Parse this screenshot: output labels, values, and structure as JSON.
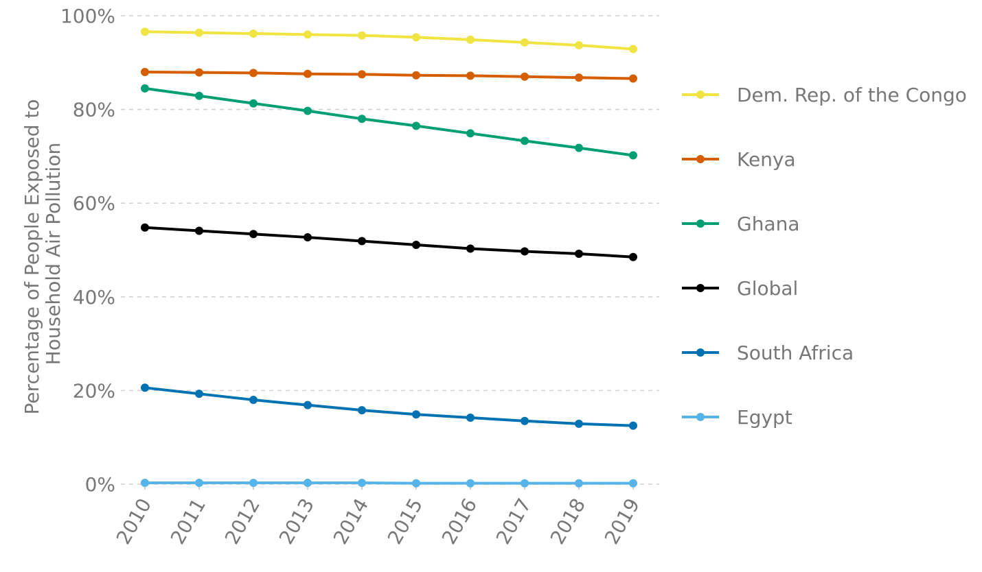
{
  "chart_data": {
    "type": "line",
    "title": "",
    "xlabel": "",
    "ylabel_lines": [
      "Percentage of People Exposed to",
      "Household Air Pollution"
    ],
    "x": [
      "2010",
      "2011",
      "2012",
      "2013",
      "2014",
      "2015",
      "2016",
      "2017",
      "2018",
      "2019"
    ],
    "ylim": [
      0,
      100
    ],
    "y_ticks": [
      0,
      20,
      40,
      60,
      80,
      100
    ],
    "y_tick_labels": [
      "0%",
      "20%",
      "40%",
      "60%",
      "80%",
      "100%"
    ],
    "grid": true,
    "legend_position": "right",
    "series": [
      {
        "name": "Dem. Rep. of the Congo",
        "color": "#f0e442",
        "values": [
          96.6,
          96.4,
          96.2,
          96.0,
          95.8,
          95.4,
          94.9,
          94.3,
          93.7,
          92.9
        ]
      },
      {
        "name": "Kenya",
        "color": "#d55e00",
        "values": [
          88.0,
          87.9,
          87.8,
          87.6,
          87.5,
          87.3,
          87.2,
          87.0,
          86.8,
          86.6
        ]
      },
      {
        "name": "Ghana",
        "color": "#009e73",
        "values": [
          84.5,
          82.9,
          81.3,
          79.7,
          78.0,
          76.5,
          74.9,
          73.3,
          71.8,
          70.2
        ]
      },
      {
        "name": "Global",
        "color": "#000000",
        "values": [
          54.8,
          54.1,
          53.4,
          52.7,
          51.9,
          51.1,
          50.3,
          49.7,
          49.2,
          48.5
        ]
      },
      {
        "name": "South Africa",
        "color": "#0072b2",
        "values": [
          20.6,
          19.3,
          18.0,
          16.9,
          15.8,
          14.9,
          14.2,
          13.5,
          12.9,
          12.5
        ]
      },
      {
        "name": "Egypt",
        "color": "#56b4e9",
        "values": [
          0.3,
          0.3,
          0.3,
          0.3,
          0.3,
          0.2,
          0.2,
          0.2,
          0.2,
          0.2
        ]
      }
    ]
  }
}
